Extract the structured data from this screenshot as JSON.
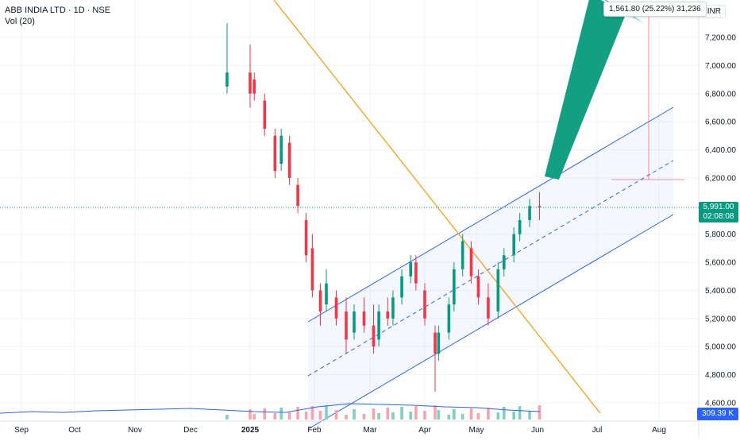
{
  "header": {
    "symbol_line": "ABB INDIA LTD · 1D · NSE",
    "indicator": "Vol (20)",
    "currency": "INR"
  },
  "measurement": {
    "label": "1,561.80 (25.22%) 31,236"
  },
  "price_tag": {
    "value": "5,991.00",
    "countdown": "02:08:08"
  },
  "volume_tag": {
    "value": "309.39 K"
  },
  "colors": {
    "up": "#089981",
    "down": "#f23645",
    "vol_up": "#7fd0c0",
    "vol_down": "#f5a5ab",
    "channel": "#2962ff",
    "trendline": "#f5a623",
    "arrow": "#139f82"
  },
  "chart_data": {
    "type": "candlestick",
    "y_axis": {
      "ticks": [
        "7,200.00",
        "7,000.00",
        "6,800.00",
        "6,600.00",
        "6,400.00",
        "6,200.00",
        "5,800.00",
        "5,600.00",
        "5,400.00",
        "5,200.00",
        "5,000.00",
        "4,800.00",
        "4,600.00"
      ],
      "values": [
        7200,
        7000,
        6800,
        6600,
        6400,
        6200,
        5800,
        5600,
        5400,
        5200,
        5000,
        4800,
        4600
      ],
      "range": [
        4550,
        7450
      ]
    },
    "x_axis": {
      "labels": [
        "Sep",
        "Oct",
        "Nov",
        "Dec",
        "2025",
        "Feb",
        "Mar",
        "Apr",
        "May",
        "Jun",
        "Jul",
        "Aug"
      ]
    },
    "current_price": 5991,
    "candles": [
      {
        "x": "2024-12-20",
        "o": 6850,
        "h": 7300,
        "l": 6800,
        "c": 6950
      },
      {
        "x": "2025-01-01",
        "o": 6950,
        "h": 7150,
        "l": 6700,
        "c": 6800
      },
      {
        "x": "2025-01-03",
        "o": 6900,
        "h": 6950,
        "l": 6750,
        "c": 6800
      },
      {
        "x": "2025-01-08",
        "o": 6750,
        "h": 6800,
        "l": 6500,
        "c": 6550
      },
      {
        "x": "2025-01-13",
        "o": 6500,
        "h": 6550,
        "l": 6200,
        "c": 6250
      },
      {
        "x": "2025-01-16",
        "o": 6300,
        "h": 6550,
        "l": 6250,
        "c": 6500
      },
      {
        "x": "2025-01-20",
        "o": 6450,
        "h": 6500,
        "l": 6150,
        "c": 6200
      },
      {
        "x": "2025-01-24",
        "o": 6150,
        "h": 6200,
        "l": 5950,
        "c": 6000
      },
      {
        "x": "2025-01-28",
        "o": 5900,
        "h": 5950,
        "l": 5600,
        "c": 5650
      },
      {
        "x": "2025-01-31",
        "o": 5700,
        "h": 5800,
        "l": 5350,
        "c": 5400
      },
      {
        "x": "2025-02-04",
        "o": 5400,
        "h": 5450,
        "l": 5150,
        "c": 5250
      },
      {
        "x": "2025-02-07",
        "o": 5300,
        "h": 5550,
        "l": 5250,
        "c": 5450
      },
      {
        "x": "2025-02-12",
        "o": 5350,
        "h": 5400,
        "l": 5150,
        "c": 5200
      },
      {
        "x": "2025-02-17",
        "o": 5250,
        "h": 5350,
        "l": 4950,
        "c": 5050
      },
      {
        "x": "2025-02-21",
        "o": 5100,
        "h": 5300,
        "l": 5050,
        "c": 5250
      },
      {
        "x": "2025-02-26",
        "o": 5250,
        "h": 5350,
        "l": 5100,
        "c": 5150
      },
      {
        "x": "2025-03-03",
        "o": 5150,
        "h": 5300,
        "l": 4950,
        "c": 5000
      },
      {
        "x": "2025-03-06",
        "o": 5050,
        "h": 5300,
        "l": 5000,
        "c": 5250
      },
      {
        "x": "2025-03-11",
        "o": 5250,
        "h": 5350,
        "l": 5150,
        "c": 5200
      },
      {
        "x": "2025-03-14",
        "o": 5200,
        "h": 5400,
        "l": 5150,
        "c": 5350
      },
      {
        "x": "2025-03-19",
        "o": 5350,
        "h": 5550,
        "l": 5300,
        "c": 5500
      },
      {
        "x": "2025-03-24",
        "o": 5500,
        "h": 5650,
        "l": 5450,
        "c": 5600
      },
      {
        "x": "2025-03-27",
        "o": 5600,
        "h": 5650,
        "l": 5400,
        "c": 5450
      },
      {
        "x": "2025-04-01",
        "o": 5400,
        "h": 5450,
        "l": 5150,
        "c": 5200
      },
      {
        "x": "2025-04-07",
        "o": 5100,
        "h": 5150,
        "l": 4680,
        "c": 4950
      },
      {
        "x": "2025-04-09",
        "o": 4950,
        "h": 5150,
        "l": 4900,
        "c": 5100
      },
      {
        "x": "2025-04-15",
        "o": 5100,
        "h": 5350,
        "l": 5050,
        "c": 5300
      },
      {
        "x": "2025-04-18",
        "o": 5300,
        "h": 5600,
        "l": 5250,
        "c": 5550
      },
      {
        "x": "2025-04-23",
        "o": 5550,
        "h": 5800,
        "l": 5500,
        "c": 5750
      },
      {
        "x": "2025-04-28",
        "o": 5700,
        "h": 5750,
        "l": 5450,
        "c": 5500
      },
      {
        "x": "2025-05-02",
        "o": 5500,
        "h": 5550,
        "l": 5300,
        "c": 5350
      },
      {
        "x": "2025-05-07",
        "o": 5350,
        "h": 5450,
        "l": 5150,
        "c": 5200
      },
      {
        "x": "2025-05-12",
        "o": 5250,
        "h": 5600,
        "l": 5200,
        "c": 5550
      },
      {
        "x": "2025-05-15",
        "o": 5550,
        "h": 5700,
        "l": 5500,
        "c": 5650
      },
      {
        "x": "2025-05-20",
        "o": 5650,
        "h": 5850,
        "l": 5600,
        "c": 5800
      },
      {
        "x": "2025-05-23",
        "o": 5800,
        "h": 5950,
        "l": 5750,
        "c": 5900
      },
      {
        "x": "2025-05-28",
        "o": 5900,
        "h": 6050,
        "l": 5850,
        "c": 6000
      },
      {
        "x": "2025-06-02",
        "o": 6000,
        "h": 6100,
        "l": 5900,
        "c": 5991
      }
    ]
  }
}
